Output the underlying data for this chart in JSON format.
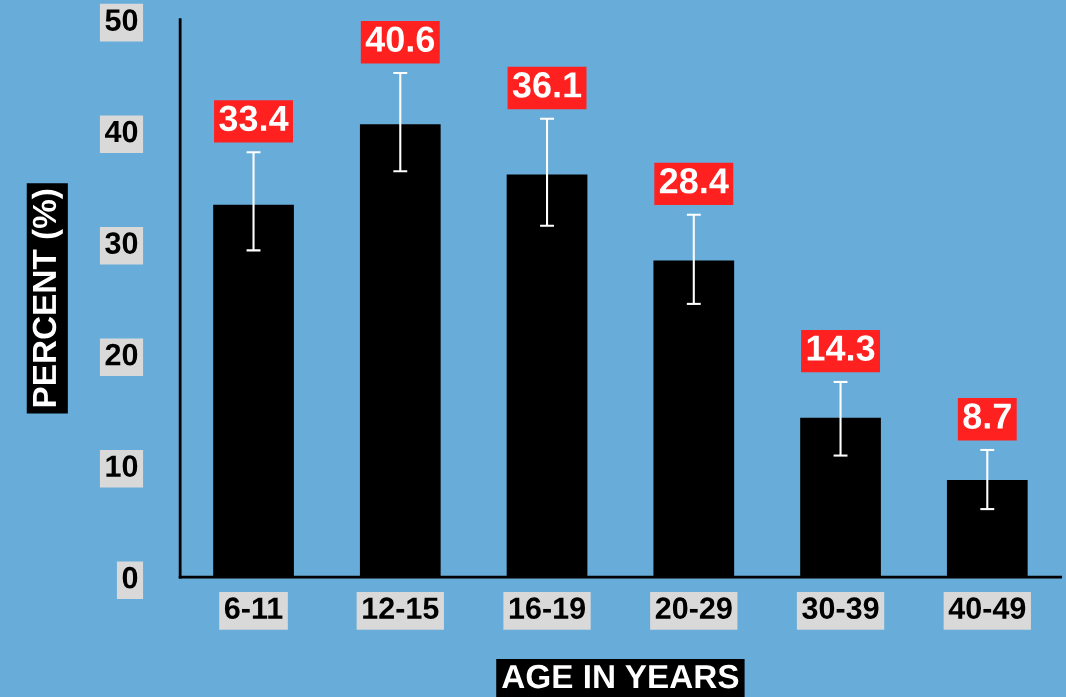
{
  "chart_data": {
    "type": "bar",
    "categories": [
      "6-11",
      "12-15",
      "16-19",
      "20-29",
      "30-39",
      "40-49"
    ],
    "series": [
      {
        "color": "#000000",
        "values": [
          33.4,
          40.6,
          36.1,
          28.4,
          14.3,
          8.7
        ],
        "errors": [
          [
            29.3,
            38.1
          ],
          [
            36.4,
            45.2
          ],
          [
            31.5,
            41.1
          ],
          [
            24.5,
            32.5
          ],
          [
            10.9,
            17.5
          ],
          [
            6.1,
            11.4
          ]
        ]
      }
    ],
    "xlabel": "AGE IN YEARS",
    "ylabel": "PERCENT (%)",
    "ylim": [
      0,
      50
    ],
    "yticks": [
      0,
      10,
      20,
      30,
      40,
      50
    ],
    "data_labels": true,
    "grid": false,
    "legend": false
  }
}
